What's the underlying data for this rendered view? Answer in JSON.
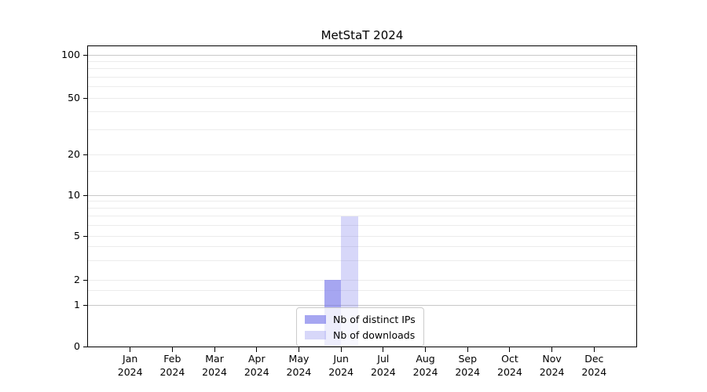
{
  "chart_data": {
    "type": "bar",
    "title": "MetStaT 2024",
    "x_categories_month": [
      "Jan",
      "Feb",
      "Mar",
      "Apr",
      "May",
      "Jun",
      "Jul",
      "Aug",
      "Sep",
      "Oct",
      "Nov",
      "Dec"
    ],
    "x_categories_year": "2024",
    "series": [
      {
        "name": "Nb of distinct IPs",
        "color": "rgba(112,112,232,0.62)",
        "values": [
          0,
          0,
          0,
          0,
          0,
          2,
          0,
          0,
          0,
          0,
          0,
          0
        ]
      },
      {
        "name": "Nb of downloads",
        "color": "rgba(112,112,232,0.28)",
        "values": [
          0,
          0,
          0,
          0,
          0,
          7,
          0,
          0,
          0,
          0,
          0,
          0
        ]
      }
    ],
    "yscale": "symlog",
    "ylim": [
      0,
      115
    ],
    "y_ticks": [
      0,
      1,
      2,
      5,
      10,
      20,
      50,
      100
    ],
    "y_major_gridlines": [
      1,
      10,
      100
    ],
    "y_minor_gridlines": [
      1.5,
      2,
      3,
      4,
      5,
      6,
      7,
      8,
      9,
      15,
      20,
      30,
      40,
      50,
      60,
      70,
      80,
      90
    ],
    "grid": true,
    "legend": {
      "position": "lower-center",
      "entries": [
        "Nb of distinct IPs",
        "Nb of downloads"
      ]
    }
  },
  "colors": {
    "background": "#ffffff",
    "axis": "#000000",
    "text": "#000000",
    "grid_major": "#c8c8c8",
    "grid_minor": "#ececec",
    "legend_border": "#cccccc",
    "legend_background": "rgba(255,255,255,0.8)",
    "bar_distinct_ips": "rgba(112,112,232,0.62)",
    "bar_downloads": "rgba(112,112,232,0.28)"
  }
}
